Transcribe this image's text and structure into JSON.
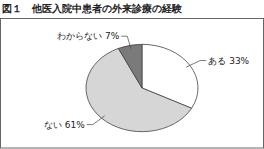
{
  "chart_data": {
    "type": "pie",
    "title": "図１　他医入院中患者の外来診療の経験",
    "categories": [
      "ある",
      "ない",
      "わからない"
    ],
    "values": [
      33,
      61,
      7
    ],
    "value_labels": [
      "33%",
      "61%",
      "7%"
    ],
    "colors": [
      "#ffffff",
      "#d6d6d6",
      "#7a7a7a"
    ],
    "data_labels": true
  }
}
